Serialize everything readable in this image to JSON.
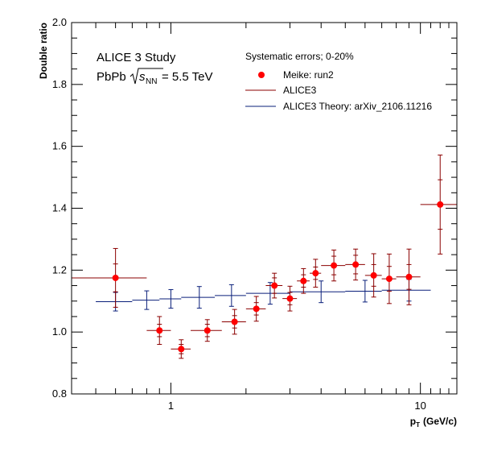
{
  "chart_data": {
    "type": "scatter",
    "ylabel": "Double ratio",
    "xlabel": "p_T (GeV/c)",
    "xlabel_main": "p",
    "xlabel_sub": "T",
    "xlabel_unit": "(GeV/c)",
    "x_scale": "log",
    "xlim": [
      0.4,
      14
    ],
    "ylim": [
      0.8,
      2.0
    ],
    "y_ticks": [
      0.8,
      1.0,
      1.2,
      1.4,
      1.6,
      1.8,
      2.0
    ],
    "y_tick_labels": [
      "0.8",
      "1.0",
      "1.2",
      "1.4",
      "1.6",
      "1.8",
      "2.0"
    ],
    "x_tick_labels": [
      {
        "value": 1,
        "label": "1"
      },
      {
        "value": 10,
        "label": "10"
      }
    ],
    "grid": false,
    "annotations": {
      "study": "ALICE 3 Study",
      "system_prefix": "PbPb ",
      "sqrt_s_sub": "NN",
      "energy": " = 5.5 TeV"
    },
    "legend": {
      "placement": "top-right",
      "header": "Systematic errors; 0-20%",
      "entries": [
        "Meike: run2",
        "ALICE3",
        "ALICE3 Theory: arXiv_2106.11216"
      ]
    },
    "series": [
      {
        "name": "Meike: run2",
        "color": "#ff0000",
        "error_color": "#8b0000",
        "points": [
          {
            "x": 0.6,
            "xlo": 0.4,
            "xhi": 0.8,
            "y": 1.175,
            "stat": 0.045,
            "sys": 0.095
          },
          {
            "x": 0.9,
            "xlo": 0.8,
            "xhi": 1.0,
            "y": 1.005,
            "stat": 0.02,
            "sys": 0.045
          },
          {
            "x": 1.1,
            "xlo": 1.0,
            "xhi": 1.2,
            "y": 0.945,
            "stat": 0.015,
            "sys": 0.03
          },
          {
            "x": 1.4,
            "xlo": 1.2,
            "xhi": 1.6,
            "y": 1.005,
            "stat": 0.02,
            "sys": 0.035
          },
          {
            "x": 1.8,
            "xlo": 1.6,
            "xhi": 2.0,
            "y": 1.033,
            "stat": 0.02,
            "sys": 0.04
          },
          {
            "x": 2.2,
            "xlo": 2.0,
            "xhi": 2.4,
            "y": 1.075,
            "stat": 0.02,
            "sys": 0.04
          },
          {
            "x": 2.6,
            "xlo": 2.4,
            "xhi": 2.8,
            "y": 1.15,
            "stat": 0.025,
            "sys": 0.04
          },
          {
            "x": 3.0,
            "xlo": 2.8,
            "xhi": 3.2,
            "y": 1.108,
            "stat": 0.02,
            "sys": 0.04
          },
          {
            "x": 3.4,
            "xlo": 3.2,
            "xhi": 3.6,
            "y": 1.165,
            "stat": 0.02,
            "sys": 0.04
          },
          {
            "x": 3.8,
            "xlo": 3.6,
            "xhi": 4.0,
            "y": 1.19,
            "stat": 0.02,
            "sys": 0.045
          },
          {
            "x": 4.5,
            "xlo": 4.0,
            "xhi": 5.0,
            "y": 1.215,
            "stat": 0.03,
            "sys": 0.05
          },
          {
            "x": 5.5,
            "xlo": 5.0,
            "xhi": 6.0,
            "y": 1.218,
            "stat": 0.03,
            "sys": 0.05
          },
          {
            "x": 6.5,
            "xlo": 6.0,
            "xhi": 7.0,
            "y": 1.183,
            "stat": 0.035,
            "sys": 0.07
          },
          {
            "x": 7.5,
            "xlo": 7.0,
            "xhi": 8.0,
            "y": 1.172,
            "stat": 0.04,
            "sys": 0.08
          },
          {
            "x": 9.0,
            "xlo": 8.0,
            "xhi": 10.0,
            "y": 1.178,
            "stat": 0.04,
            "sys": 0.09
          },
          {
            "x": 12.0,
            "xlo": 10.0,
            "xhi": 14.0,
            "y": 1.412,
            "stat": 0.08,
            "sys": 0.16
          }
        ]
      },
      {
        "name": "ALICE3",
        "color": "#8b0000",
        "points": []
      },
      {
        "name": "ALICE3 Theory: arXiv_2106.11216",
        "color": "#0a1f7a",
        "points": [
          {
            "x": 0.6,
            "xlo": 0.5,
            "xhi": 0.7,
            "y": 1.098,
            "err": 0.03
          },
          {
            "x": 0.8,
            "xlo": 0.7,
            "xhi": 0.9,
            "y": 1.103,
            "err": 0.03
          },
          {
            "x": 1.0,
            "xlo": 0.9,
            "xhi": 1.1,
            "y": 1.107,
            "err": 0.03
          },
          {
            "x": 1.3,
            "xlo": 1.1,
            "xhi": 1.5,
            "y": 1.112,
            "err": 0.035
          },
          {
            "x": 1.75,
            "xlo": 1.5,
            "xhi": 2.0,
            "y": 1.118,
            "err": 0.035
          },
          {
            "x": 2.5,
            "xlo": 2.0,
            "xhi": 3.0,
            "y": 1.125,
            "err": 0.035
          },
          {
            "x": 4.0,
            "xlo": 3.0,
            "xhi": 5.0,
            "y": 1.13,
            "err": 0.035
          },
          {
            "x": 6.0,
            "xlo": 5.0,
            "xhi": 7.0,
            "y": 1.132,
            "err": 0.035
          },
          {
            "x": 9.0,
            "xlo": 7.0,
            "xhi": 11.0,
            "y": 1.135,
            "err": 0.035
          }
        ]
      }
    ]
  }
}
